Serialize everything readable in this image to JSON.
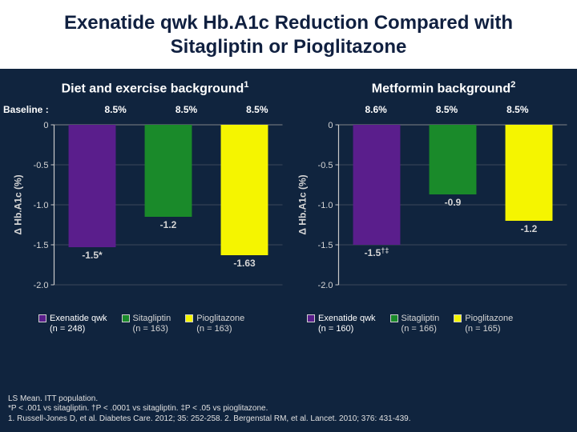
{
  "title": "Exenatide qwk Hb.A1c Reduction Compared with Sitagliptin or Pioglitazone",
  "background_color": "#10243e",
  "subtitles": {
    "left": {
      "text": "Diet and exercise background",
      "sup": "1"
    },
    "right": {
      "text": "Metformin background",
      "sup": "2"
    }
  },
  "baseline": {
    "label": "Baseline :",
    "left": [
      "8.5%",
      "8.5%",
      "8.5%"
    ],
    "right": [
      "8.6%",
      "8.5%",
      "8.5%"
    ]
  },
  "chart_common": {
    "ylabel": "Δ Hb.A1c (%)",
    "ymin": -2.0,
    "ymax": 0.0,
    "ytick_step": 0.5,
    "bar_width": 0.62,
    "grid_color": "#6a6f78",
    "axis_color": "#c9c9c9",
    "text_color": "#d6d6d6",
    "label_fontsize": 11
  },
  "left_chart": {
    "bars": [
      {
        "value": -1.53,
        "label": "-1.5*",
        "color": "#5a1e8c"
      },
      {
        "value": -1.15,
        "label": "-1.2",
        "color": "#1a8a2a"
      },
      {
        "value": -1.63,
        "label": "-1.63",
        "color": "#f5f500"
      }
    ]
  },
  "right_chart": {
    "bars": [
      {
        "value": -1.5,
        "label": "-1.5",
        "sup": "†‡",
        "color": "#5a1e8c"
      },
      {
        "value": -0.87,
        "label": "-0.9",
        "color": "#1a8a2a"
      },
      {
        "value": -1.2,
        "label": "-1.2",
        "color": "#f5f500"
      }
    ]
  },
  "legends": {
    "left": [
      {
        "color": "#5a1e8c",
        "line1": "Exenatide qwk",
        "line2": "(n = 248)",
        "highlight": true
      },
      {
        "color": "#1a8a2a",
        "line1": "Sitagliptin",
        "line2": "(n = 163)"
      },
      {
        "color": "#f5f500",
        "line1": "Pioglitazone",
        "line2": "(n = 163)"
      }
    ],
    "right": [
      {
        "color": "#5a1e8c",
        "line1": "Exenatide qwk",
        "line2": "(n = 160)",
        "highlight": true
      },
      {
        "color": "#1a8a2a",
        "line1": "Sitagliptin",
        "line2": "(n = 166)"
      },
      {
        "color": "#f5f500",
        "line1": "Pioglitazone",
        "line2": "(n = 165)"
      }
    ]
  },
  "footnotes": {
    "l1": "LS Mean. ITT population.",
    "l2_a": "*P < .001 vs sitagliptin. ",
    "l2_b": "†P < .0001 vs sitagliptin. ",
    "l2_c": "‡P < .05 vs pioglitazone.",
    "l3": "1. Russell-Jones D, et al. Diabetes Care. 2012; 35: 252-258. 2. Bergenstal RM, et al. Lancet. 2010; 376: 431-439."
  }
}
